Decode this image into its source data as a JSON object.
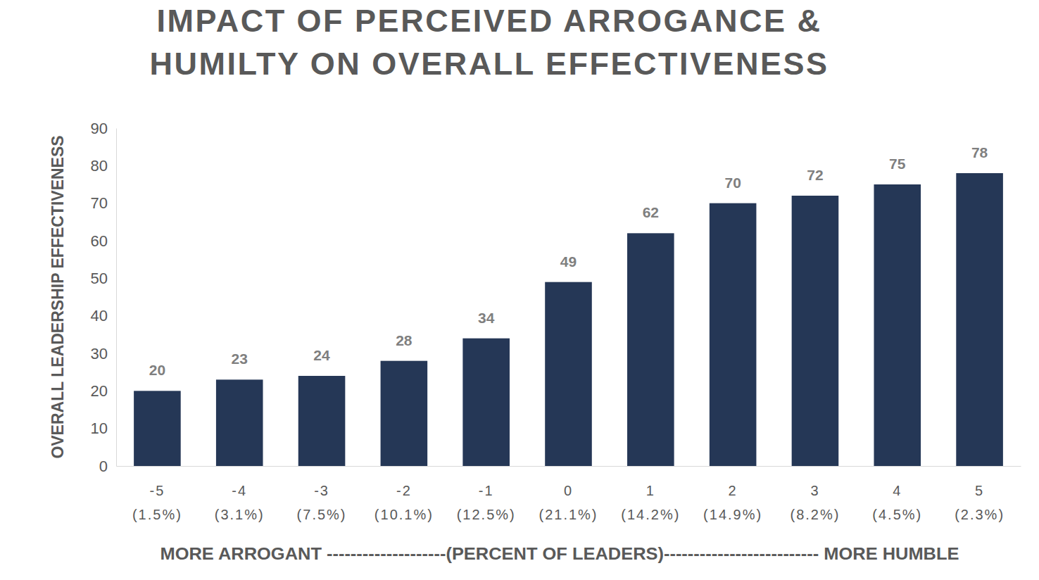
{
  "chart_data": {
    "type": "bar",
    "title": "IMPACT OF PERCEIVED ARROGANCE & HUMILTY ON OVERALL EFFECTIVENESS",
    "x_label": "MORE ARROGANT --------------------(PERCENT OF LEADERS)-------------------------- MORE HUMBLE",
    "y_label": "OVERALL LEADERSHIP EFFECTIVENESS",
    "categories": [
      "-5 (1.5%)",
      "-4 (3.1%)",
      "-3 (7.5%)",
      "-2 (10.1%)",
      "-1 (12.5%)",
      "0 (21.1%)",
      "1 (14.2%)",
      "2 (14.9%)",
      "3 (8.2%)",
      "4 (4.5%)",
      "5 (2.3%)"
    ],
    "values": [
      20,
      23,
      24,
      28,
      34,
      49,
      62,
      70,
      72,
      75,
      78
    ],
    "color": "#253756",
    "ylim": [
      0,
      90
    ],
    "yticks": [
      0,
      10,
      20,
      30,
      40,
      50,
      60,
      70,
      80,
      90
    ],
    "grid": false,
    "data_labels": true
  }
}
